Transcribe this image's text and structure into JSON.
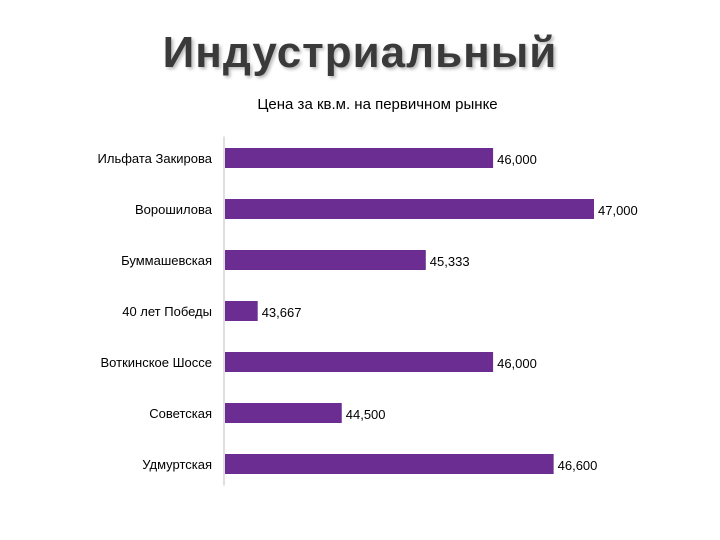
{
  "slide": {
    "title": "Индустриальный"
  },
  "chart_data": {
    "type": "bar",
    "orientation": "horizontal",
    "title": "Цена за кв.м. на первичном рынке",
    "xlabel": "",
    "ylabel": "",
    "categories": [
      "Ильфата Закирова",
      "Ворошилова",
      "Буммашевская",
      "40 лет Победы",
      "Воткинское Шоссе",
      "Советская",
      "Удмуртская"
    ],
    "values": [
      46000,
      47000,
      45333,
      43667,
      46000,
      44500,
      46600
    ],
    "value_labels": [
      "46,000",
      "47,000",
      "45,333",
      "43,667",
      "46,000",
      "44,500",
      "46,600"
    ],
    "xlim": [
      43333,
      47000
    ],
    "grid": false,
    "legend": "none",
    "colors": {
      "bar": "#6b2d91"
    }
  }
}
